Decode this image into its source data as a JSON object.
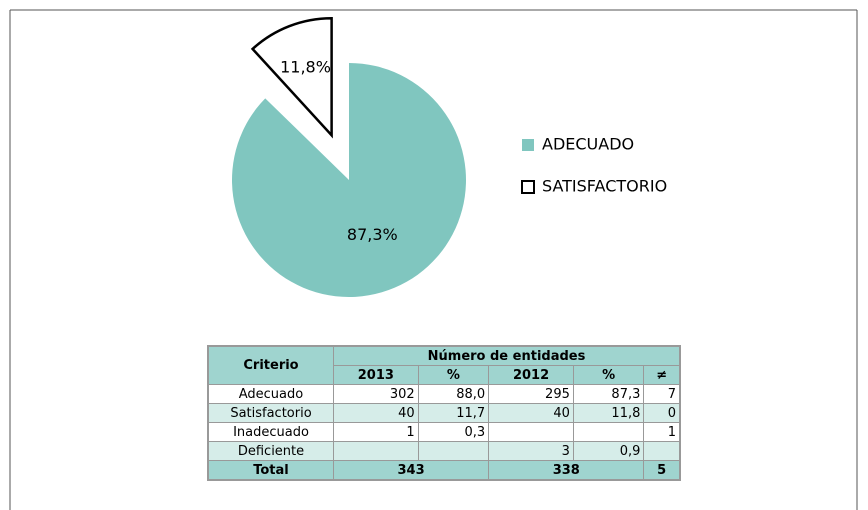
{
  "chart_data": {
    "type": "pie",
    "categories": [
      "ADECUADO",
      "SATISFACTORIO"
    ],
    "values": [
      87.3,
      11.8
    ],
    "value_labels": [
      "87,3%",
      "11,8%"
    ],
    "colors": [
      "#80c6bf",
      "#ffffff"
    ],
    "explode": [
      false,
      true
    ]
  },
  "table": {
    "header": {
      "criterio": "Criterio",
      "group": "Número de entidades",
      "columns": [
        "2013",
        "%",
        "2012",
        "%",
        "≠"
      ]
    },
    "rows": [
      [
        "Adecuado",
        "302",
        "88,0",
        "295",
        "87,3",
        "7"
      ],
      [
        "Satisfactorio",
        "40",
        "11,7",
        "40",
        "11,8",
        "0"
      ],
      [
        "Inadecuado",
        "1",
        "0,3",
        null,
        null,
        "1"
      ],
      [
        "Deficiente",
        null,
        null,
        "3",
        "0,9",
        null
      ]
    ],
    "total": [
      "Total",
      "343",
      "338",
      "5"
    ]
  }
}
